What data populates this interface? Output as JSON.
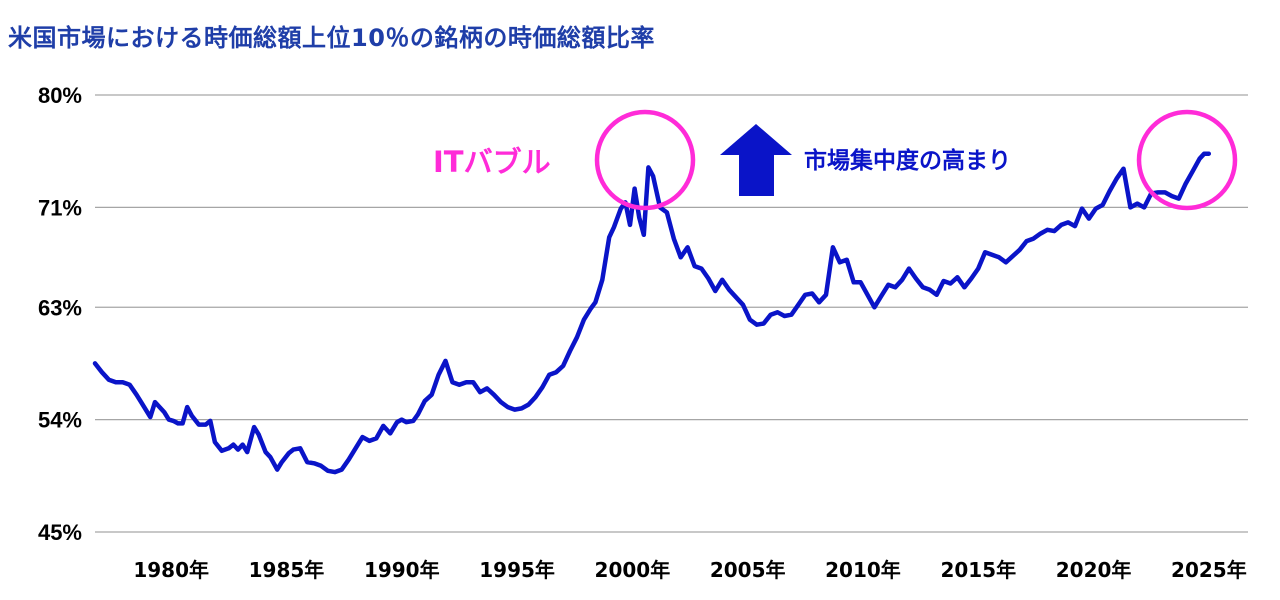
{
  "chart_data": {
    "type": "line",
    "title": "米国市場における時価総額上位10％の銘柄の時価総額比率",
    "ylim": [
      45,
      80
    ],
    "ytick_labels": [
      "80%",
      "71%",
      "63%",
      "54%",
      "45%"
    ],
    "ytick_values": [
      80,
      71,
      63,
      54,
      45
    ],
    "xtick_labels": [
      "1980年",
      "1985年",
      "1990年",
      "1995年",
      "2000年",
      "2005年",
      "2010年",
      "2015年",
      "2020年",
      "2025年"
    ],
    "xtick_values": [
      1980,
      1985,
      1990,
      1995,
      2000,
      2005,
      2010,
      2015,
      2020,
      2025
    ],
    "xlim": [
      1977,
      2027
    ],
    "grid": true,
    "series": [
      {
        "x": [
          1977.0,
          1977.3,
          1977.6,
          1977.9,
          1978.2,
          1978.5,
          1978.8,
          1979.0,
          1979.2,
          1979.4,
          1979.6,
          1979.8,
          1980.0,
          1980.2,
          1980.4,
          1980.6,
          1980.8,
          1981.0,
          1981.2,
          1981.5,
          1981.8,
          1982.0,
          1982.2,
          1982.5,
          1982.8,
          1983.0,
          1983.2,
          1983.4,
          1983.6,
          1983.9,
          1984.1,
          1984.4,
          1984.6,
          1984.9,
          1985.1,
          1985.4,
          1985.6,
          1985.9,
          1986.2,
          1986.5,
          1986.8,
          1987.1,
          1987.4,
          1987.7,
          1988.0,
          1988.3,
          1988.6,
          1988.9,
          1989.2,
          1989.5,
          1989.8,
          1990.1,
          1990.3,
          1990.5,
          1990.8,
          1991.0,
          1991.3,
          1991.6,
          1991.9,
          1992.2,
          1992.5,
          1992.8,
          1993.1,
          1993.4,
          1993.7,
          1994.0,
          1994.3,
          1994.6,
          1994.9,
          1995.2,
          1995.5,
          1995.8,
          1996.1,
          1996.4,
          1996.7,
          1997.0,
          1997.3,
          1997.6,
          1997.9,
          1998.2,
          1998.5,
          1998.7,
          1999.0,
          1999.3,
          1999.5,
          1999.8,
          2000.0,
          2000.2,
          2000.4,
          2000.6,
          2000.8,
          2001.0,
          2001.2,
          2001.5,
          2001.8,
          2002.1,
          2002.4,
          2002.7,
          2003.0,
          2003.3,
          2003.6,
          2003.9,
          2004.2,
          2004.5,
          2004.8,
          2005.1,
          2005.4,
          2005.7,
          2006.0,
          2006.3,
          2006.6,
          2006.9,
          2007.2,
          2007.5,
          2007.8,
          2008.1,
          2008.4,
          2008.7,
          2009.0,
          2009.3,
          2009.6,
          2009.9,
          2010.2,
          2010.5,
          2010.8,
          2011.1,
          2011.4,
          2011.7,
          2012.0,
          2012.3,
          2012.6,
          2012.9,
          2013.2,
          2013.5,
          2013.8,
          2014.1,
          2014.4,
          2014.7,
          2015.0,
          2015.3,
          2015.6,
          2015.9,
          2016.2,
          2016.5,
          2016.8,
          2017.1,
          2017.4,
          2017.7,
          2018.0,
          2018.3,
          2018.6,
          2018.9,
          2019.2,
          2019.5,
          2019.8,
          2020.1,
          2020.4,
          2020.7,
          2021.0,
          2021.3,
          2021.6,
          2021.9,
          2022.2,
          2022.5,
          2022.8,
          2023.1,
          2023.4,
          2023.7,
          2024.0,
          2024.3,
          2024.6,
          2024.9,
          2025.1,
          2025.3
        ],
        "y": [
          58.5,
          57.8,
          57.2,
          57.0,
          57.0,
          56.8,
          56.0,
          55.4,
          54.8,
          54.2,
          55.4,
          55.0,
          54.6,
          54.0,
          53.9,
          53.7,
          53.7,
          55.0,
          54.3,
          53.6,
          53.6,
          53.9,
          52.2,
          51.5,
          51.7,
          52.0,
          51.6,
          52.0,
          51.4,
          53.4,
          52.8,
          51.4,
          51.0,
          50.0,
          50.6,
          51.3,
          51.6,
          51.7,
          50.6,
          50.5,
          50.3,
          49.9,
          49.8,
          50.0,
          50.8,
          51.7,
          52.6,
          52.3,
          52.5,
          53.5,
          52.9,
          53.8,
          54.0,
          53.8,
          53.9,
          54.4,
          55.5,
          56.0,
          57.6,
          58.7,
          57.0,
          56.8,
          57.0,
          57.0,
          56.2,
          56.5,
          56.0,
          55.4,
          55.0,
          54.8,
          54.9,
          55.2,
          55.8,
          56.6,
          57.6,
          57.8,
          58.3,
          59.5,
          60.6,
          62.0,
          62.9,
          63.4,
          65.2,
          68.6,
          69.4,
          70.9,
          71.4,
          69.6,
          72.5,
          70.2,
          68.8,
          74.2,
          73.5,
          71.0,
          70.6,
          68.5,
          67.0,
          67.8,
          66.3,
          66.1,
          65.3,
          64.3,
          65.2,
          64.4,
          63.8,
          63.2,
          62.0,
          61.6,
          61.7,
          62.4,
          62.6,
          62.3,
          62.4,
          63.2,
          64.0,
          64.1,
          63.4,
          64.0,
          67.8,
          66.6,
          66.8,
          65.0,
          65.0,
          64.0,
          63.0,
          63.9,
          64.8,
          64.6,
          65.2,
          66.1,
          65.3,
          64.6,
          64.4,
          64.0,
          65.1,
          64.9,
          65.4,
          64.6,
          65.3,
          66.1,
          67.4,
          67.2,
          67.0,
          66.6,
          67.1,
          67.6,
          68.3,
          68.5,
          68.9,
          69.2,
          69.1,
          69.6,
          69.8,
          69.5,
          70.9,
          70.1,
          70.9,
          71.2,
          72.3,
          73.3,
          74.1,
          71.0,
          71.3,
          71.0,
          72.1,
          72.2,
          72.2,
          71.9,
          71.7,
          72.9,
          73.9,
          74.9,
          75.3,
          75.3
        ]
      }
    ],
    "annotations": {
      "bubble_label": "ITバブル",
      "concentration_label": "市場集中度の高まり"
    }
  },
  "colors": {
    "line": "#0a14c8",
    "title": "#1f3ea8",
    "circle": "#ff2bd8",
    "arrow": "#0a14c8",
    "annotation_text": "#0a14c8",
    "bubble_text": "#ff2bd8",
    "grid": "#a6a6a6"
  },
  "icons": {
    "up_arrow": "up-arrow-icon",
    "highlight_circles": "highlight-circle-icon"
  }
}
